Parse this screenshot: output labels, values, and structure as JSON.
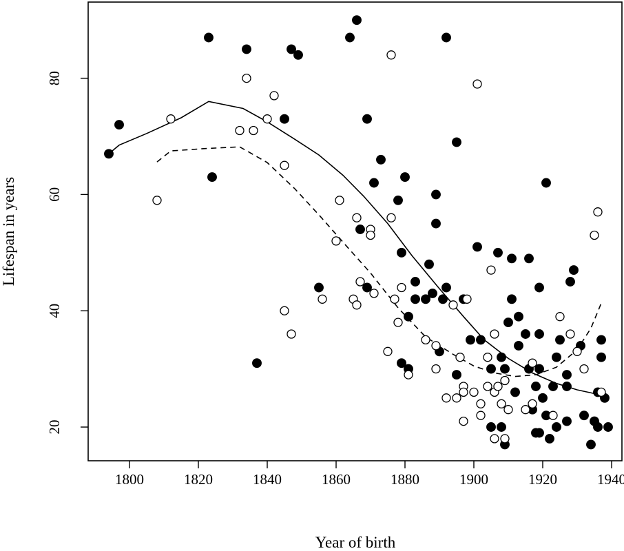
{
  "chart_data": {
    "type": "scatter",
    "title": "",
    "xlabel": "Year of birth",
    "ylabel": "Lifespan in years",
    "xlim": [
      1788,
      1943
    ],
    "ylim": [
      14.2,
      93.1
    ],
    "xticks": [
      1800,
      1820,
      1840,
      1860,
      1880,
      1900,
      1920,
      1940
    ],
    "yticks": [
      20,
      40,
      60,
      80
    ],
    "grid": false,
    "legend": "none",
    "series": [
      {
        "marker": "filled-circle",
        "color": "#000000",
        "points": [
          [
            1794,
            67
          ],
          [
            1797,
            72
          ],
          [
            1823,
            87
          ],
          [
            1824,
            63
          ],
          [
            1834,
            85
          ],
          [
            1837,
            31
          ],
          [
            1845,
            73
          ],
          [
            1847,
            85
          ],
          [
            1849,
            84
          ],
          [
            1855,
            44
          ],
          [
            1864,
            87
          ],
          [
            1866,
            90
          ],
          [
            1867,
            54
          ],
          [
            1869,
            44
          ],
          [
            1869,
            73
          ],
          [
            1871,
            62
          ],
          [
            1873,
            66
          ],
          [
            1878,
            59
          ],
          [
            1879,
            31
          ],
          [
            1879,
            50
          ],
          [
            1880,
            63
          ],
          [
            1881,
            39
          ],
          [
            1881,
            30
          ],
          [
            1883,
            42
          ],
          [
            1883,
            45
          ],
          [
            1886,
            42
          ],
          [
            1887,
            48
          ],
          [
            1888,
            43
          ],
          [
            1889,
            55
          ],
          [
            1889,
            60
          ],
          [
            1890,
            33
          ],
          [
            1891,
            42
          ],
          [
            1892,
            44
          ],
          [
            1892,
            87
          ],
          [
            1895,
            69
          ],
          [
            1895,
            29
          ],
          [
            1897,
            42
          ],
          [
            1899,
            35
          ],
          [
            1901,
            51
          ],
          [
            1902,
            35
          ],
          [
            1905,
            20
          ],
          [
            1905,
            30
          ],
          [
            1907,
            50
          ],
          [
            1908,
            32
          ],
          [
            1908,
            20
          ],
          [
            1909,
            30
          ],
          [
            1909,
            17
          ],
          [
            1910,
            38
          ],
          [
            1911,
            49
          ],
          [
            1911,
            42
          ],
          [
            1912,
            26
          ],
          [
            1913,
            34
          ],
          [
            1913,
            39
          ],
          [
            1915,
            36
          ],
          [
            1916,
            49
          ],
          [
            1916,
            30
          ],
          [
            1917,
            23
          ],
          [
            1918,
            27
          ],
          [
            1918,
            19
          ],
          [
            1919,
            44
          ],
          [
            1919,
            36
          ],
          [
            1919,
            30
          ],
          [
            1919,
            19
          ],
          [
            1920,
            25
          ],
          [
            1921,
            62
          ],
          [
            1921,
            22
          ],
          [
            1922,
            18
          ],
          [
            1923,
            27
          ],
          [
            1924,
            32
          ],
          [
            1924,
            20
          ],
          [
            1925,
            35
          ],
          [
            1927,
            29
          ],
          [
            1927,
            27
          ],
          [
            1927,
            21
          ],
          [
            1928,
            45
          ],
          [
            1929,
            47
          ],
          [
            1931,
            34
          ],
          [
            1932,
            22
          ],
          [
            1934,
            17
          ],
          [
            1935,
            21
          ],
          [
            1936,
            26
          ],
          [
            1936,
            20
          ],
          [
            1937,
            35
          ],
          [
            1937,
            32
          ],
          [
            1938,
            25
          ],
          [
            1939,
            20
          ]
        ]
      },
      {
        "marker": "open-circle",
        "color": "#000000",
        "points": [
          [
            1808,
            59
          ],
          [
            1812,
            73
          ],
          [
            1832,
            71
          ],
          [
            1834,
            80
          ],
          [
            1836,
            71
          ],
          [
            1840,
            73
          ],
          [
            1842,
            77
          ],
          [
            1845,
            65
          ],
          [
            1845,
            40
          ],
          [
            1847,
            36
          ],
          [
            1856,
            42
          ],
          [
            1860,
            52
          ],
          [
            1861,
            59
          ],
          [
            1865,
            42
          ],
          [
            1866,
            41
          ],
          [
            1866,
            56
          ],
          [
            1867,
            45
          ],
          [
            1870,
            54
          ],
          [
            1870,
            53
          ],
          [
            1871,
            43
          ],
          [
            1875,
            33
          ],
          [
            1876,
            56
          ],
          [
            1876,
            84
          ],
          [
            1877,
            42
          ],
          [
            1878,
            38
          ],
          [
            1879,
            44
          ],
          [
            1881,
            29
          ],
          [
            1886,
            35
          ],
          [
            1889,
            34
          ],
          [
            1889,
            30
          ],
          [
            1892,
            25
          ],
          [
            1894,
            41
          ],
          [
            1895,
            25
          ],
          [
            1896,
            32
          ],
          [
            1897,
            27
          ],
          [
            1897,
            26
          ],
          [
            1897,
            21
          ],
          [
            1898,
            42
          ],
          [
            1900,
            26
          ],
          [
            1901,
            79
          ],
          [
            1902,
            24
          ],
          [
            1902,
            22
          ],
          [
            1904,
            32
          ],
          [
            1904,
            27
          ],
          [
            1905,
            47
          ],
          [
            1906,
            36
          ],
          [
            1906,
            26
          ],
          [
            1906,
            18
          ],
          [
            1907,
            27
          ],
          [
            1908,
            24
          ],
          [
            1909,
            28
          ],
          [
            1909,
            18
          ],
          [
            1910,
            23
          ],
          [
            1915,
            23
          ],
          [
            1917,
            31
          ],
          [
            1917,
            24
          ],
          [
            1923,
            22
          ],
          [
            1925,
            39
          ],
          [
            1928,
            36
          ],
          [
            1930,
            33
          ],
          [
            1932,
            30
          ],
          [
            1935,
            53
          ],
          [
            1936,
            57
          ],
          [
            1937,
            26
          ]
        ]
      },
      {
        "marker": "solid-line",
        "color": "#000000",
        "points": [
          [
            1794,
            67
          ],
          [
            1797,
            68.5
          ],
          [
            1805,
            70.5
          ],
          [
            1815,
            73.2
          ],
          [
            1823,
            76
          ],
          [
            1833,
            74.8
          ],
          [
            1840,
            72.5
          ],
          [
            1848,
            69.5
          ],
          [
            1855,
            66.8
          ],
          [
            1862,
            63.3
          ],
          [
            1868,
            59.7
          ],
          [
            1875,
            55
          ],
          [
            1882,
            49.5
          ],
          [
            1890,
            43.8
          ],
          [
            1897,
            39
          ],
          [
            1903,
            35
          ],
          [
            1910,
            31.8
          ],
          [
            1917,
            29.3
          ],
          [
            1924,
            27.5
          ],
          [
            1930,
            26.4
          ],
          [
            1937,
            25.5
          ]
        ]
      },
      {
        "marker": "dashed-line",
        "color": "#000000",
        "points": [
          [
            1808,
            65.6
          ],
          [
            1812,
            67.5
          ],
          [
            1822,
            67.9
          ],
          [
            1832,
            68.2
          ],
          [
            1840,
            65.5
          ],
          [
            1848,
            61
          ],
          [
            1855,
            56.5
          ],
          [
            1862,
            51.8
          ],
          [
            1870,
            46.5
          ],
          [
            1878,
            40.5
          ],
          [
            1886,
            35.5
          ],
          [
            1894,
            32.5
          ],
          [
            1900,
            30.5
          ],
          [
            1906,
            29.3
          ],
          [
            1912,
            28.7
          ],
          [
            1918,
            29
          ],
          [
            1924,
            30.3
          ],
          [
            1930,
            33.3
          ],
          [
            1934,
            37
          ],
          [
            1937,
            41.3
          ]
        ]
      }
    ]
  }
}
